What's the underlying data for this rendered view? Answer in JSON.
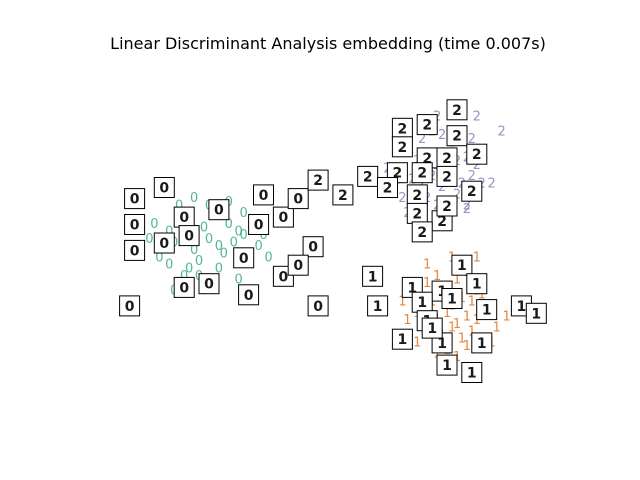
{
  "chart_data": {
    "type": "scatter",
    "title": "Linear Discriminant Analysis embedding (time 0.007s)",
    "xlabel": "",
    "ylabel": "",
    "axes": "off",
    "grid": false,
    "xlim": [
      0,
      1
    ],
    "ylim": [
      0,
      1
    ],
    "marker": "digit-text",
    "series": [
      {
        "label": "0",
        "color": "#1b9e77",
        "x": [
          0.15,
          0.18,
          0.2,
          0.22,
          0.25,
          0.27,
          0.3,
          0.32,
          0.35,
          0.17,
          0.19,
          0.21,
          0.23,
          0.26,
          0.28,
          0.31,
          0.33,
          0.14,
          0.16,
          0.24,
          0.29,
          0.34,
          0.36,
          0.2,
          0.22,
          0.26,
          0.3,
          0.18,
          0.24,
          0.28,
          0.38,
          0.32,
          0.27,
          0.23,
          0.19,
          0.33,
          0.37,
          0.21
        ],
        "y": [
          0.55,
          0.53,
          0.57,
          0.56,
          0.54,
          0.58,
          0.55,
          0.53,
          0.56,
          0.49,
          0.5,
          0.52,
          0.48,
          0.51,
          0.49,
          0.5,
          0.52,
          0.51,
          0.46,
          0.45,
          0.47,
          0.45,
          0.49,
          0.6,
          0.43,
          0.6,
          0.61,
          0.44,
          0.41,
          0.43,
          0.46,
          0.4,
          0.39,
          0.62,
          0.37,
          0.58,
          0.52,
          0.41
        ]
      },
      {
        "label": "1",
        "color": "#d95f02",
        "x": [
          0.7,
          0.72,
          0.74,
          0.76,
          0.78,
          0.8,
          0.69,
          0.71,
          0.73,
          0.75,
          0.77,
          0.79,
          0.81,
          0.68,
          0.7,
          0.72,
          0.74,
          0.76,
          0.78,
          0.8,
          0.82,
          0.71,
          0.73,
          0.75,
          0.77,
          0.79,
          0.66,
          0.84,
          0.74,
          0.76,
          0.72,
          0.78,
          0.65,
          0.83,
          0.7,
          0.75,
          0.86,
          0.68,
          0.8,
          0.74,
          0.67
        ],
        "y": [
          0.39,
          0.41,
          0.38,
          0.4,
          0.42,
          0.37,
          0.35,
          0.34,
          0.36,
          0.33,
          0.35,
          0.34,
          0.36,
          0.31,
          0.3,
          0.29,
          0.31,
          0.28,
          0.3,
          0.29,
          0.32,
          0.26,
          0.25,
          0.27,
          0.24,
          0.26,
          0.29,
          0.27,
          0.21,
          0.19,
          0.2,
          0.22,
          0.34,
          0.23,
          0.44,
          0.46,
          0.3,
          0.23,
          0.46,
          0.16,
          0.39
        ]
      },
      {
        "label": "2",
        "color": "#7570b3",
        "x": [
          0.69,
          0.71,
          0.73,
          0.75,
          0.77,
          0.79,
          0.68,
          0.7,
          0.72,
          0.74,
          0.76,
          0.78,
          0.8,
          0.67,
          0.69,
          0.71,
          0.73,
          0.75,
          0.77,
          0.79,
          0.81,
          0.7,
          0.72,
          0.74,
          0.76,
          0.78,
          0.65,
          0.83,
          0.62,
          0.85,
          0.74,
          0.72,
          0.66,
          0.8,
          0.64,
          0.78
        ],
        "y": [
          0.78,
          0.8,
          0.79,
          0.77,
          0.8,
          0.78,
          0.72,
          0.73,
          0.71,
          0.74,
          0.72,
          0.73,
          0.71,
          0.67,
          0.66,
          0.68,
          0.65,
          0.67,
          0.66,
          0.68,
          0.66,
          0.62,
          0.6,
          0.61,
          0.63,
          0.6,
          0.62,
          0.66,
          0.7,
          0.8,
          0.56,
          0.84,
          0.58,
          0.84,
          0.67,
          0.59
        ]
      }
    ],
    "thumbnails": [
      {
        "digit": "0",
        "x": 0.11,
        "y": 0.62
      },
      {
        "digit": "0",
        "x": 0.17,
        "y": 0.65
      },
      {
        "digit": "0",
        "x": 0.21,
        "y": 0.57
      },
      {
        "digit": "0",
        "x": 0.11,
        "y": 0.55
      },
      {
        "digit": "0",
        "x": 0.11,
        "y": 0.48
      },
      {
        "digit": "0",
        "x": 0.17,
        "y": 0.5
      },
      {
        "digit": "0",
        "x": 0.22,
        "y": 0.52
      },
      {
        "digit": "0",
        "x": 0.28,
        "y": 0.59
      },
      {
        "digit": "0",
        "x": 0.37,
        "y": 0.63
      },
      {
        "digit": "0",
        "x": 0.41,
        "y": 0.57
      },
      {
        "digit": "0",
        "x": 0.44,
        "y": 0.62
      },
      {
        "digit": "0",
        "x": 0.47,
        "y": 0.49
      },
      {
        "digit": "0",
        "x": 0.36,
        "y": 0.55
      },
      {
        "digit": "0",
        "x": 0.33,
        "y": 0.46
      },
      {
        "digit": "0",
        "x": 0.41,
        "y": 0.41
      },
      {
        "digit": "0",
        "x": 0.44,
        "y": 0.44
      },
      {
        "digit": "0",
        "x": 0.26,
        "y": 0.39
      },
      {
        "digit": "0",
        "x": 0.21,
        "y": 0.38
      },
      {
        "digit": "0",
        "x": 0.34,
        "y": 0.36
      },
      {
        "digit": "0",
        "x": 0.1,
        "y": 0.33
      },
      {
        "digit": "0",
        "x": 0.48,
        "y": 0.33
      },
      {
        "digit": "1",
        "x": 0.89,
        "y": 0.33
      },
      {
        "digit": "1",
        "x": 0.92,
        "y": 0.31
      },
      {
        "digit": "1",
        "x": 0.82,
        "y": 0.32
      },
      {
        "digit": "1",
        "x": 0.77,
        "y": 0.44
      },
      {
        "digit": "1",
        "x": 0.8,
        "y": 0.39
      },
      {
        "digit": "1",
        "x": 0.73,
        "y": 0.37
      },
      {
        "digit": "1",
        "x": 0.67,
        "y": 0.38
      },
      {
        "digit": "1",
        "x": 0.69,
        "y": 0.34
      },
      {
        "digit": "1",
        "x": 0.75,
        "y": 0.35
      },
      {
        "digit": "1",
        "x": 0.7,
        "y": 0.29
      },
      {
        "digit": "1",
        "x": 0.65,
        "y": 0.24
      },
      {
        "digit": "1",
        "x": 0.59,
        "y": 0.41
      },
      {
        "digit": "1",
        "x": 0.6,
        "y": 0.33
      },
      {
        "digit": "1",
        "x": 0.73,
        "y": 0.23
      },
      {
        "digit": "1",
        "x": 0.81,
        "y": 0.23
      },
      {
        "digit": "1",
        "x": 0.74,
        "y": 0.17
      },
      {
        "digit": "1",
        "x": 0.79,
        "y": 0.15
      },
      {
        "digit": "1",
        "x": 0.71,
        "y": 0.27
      },
      {
        "digit": "2",
        "x": 0.76,
        "y": 0.86
      },
      {
        "digit": "2",
        "x": 0.7,
        "y": 0.82
      },
      {
        "digit": "2",
        "x": 0.65,
        "y": 0.81
      },
      {
        "digit": "2",
        "x": 0.76,
        "y": 0.79
      },
      {
        "digit": "2",
        "x": 0.65,
        "y": 0.76
      },
      {
        "digit": "2",
        "x": 0.7,
        "y": 0.73
      },
      {
        "digit": "2",
        "x": 0.74,
        "y": 0.73
      },
      {
        "digit": "2",
        "x": 0.8,
        "y": 0.74
      },
      {
        "digit": "2",
        "x": 0.64,
        "y": 0.69
      },
      {
        "digit": "2",
        "x": 0.58,
        "y": 0.68
      },
      {
        "digit": "2",
        "x": 0.69,
        "y": 0.69
      },
      {
        "digit": "2",
        "x": 0.74,
        "y": 0.68
      },
      {
        "digit": "2",
        "x": 0.62,
        "y": 0.65
      },
      {
        "digit": "2",
        "x": 0.48,
        "y": 0.67
      },
      {
        "digit": "2",
        "x": 0.53,
        "y": 0.63
      },
      {
        "digit": "2",
        "x": 0.68,
        "y": 0.63
      },
      {
        "digit": "2",
        "x": 0.79,
        "y": 0.64
      },
      {
        "digit": "2",
        "x": 0.68,
        "y": 0.58
      },
      {
        "digit": "2",
        "x": 0.73,
        "y": 0.56
      },
      {
        "digit": "2",
        "x": 0.69,
        "y": 0.53
      },
      {
        "digit": "2",
        "x": 0.74,
        "y": 0.6
      }
    ]
  }
}
